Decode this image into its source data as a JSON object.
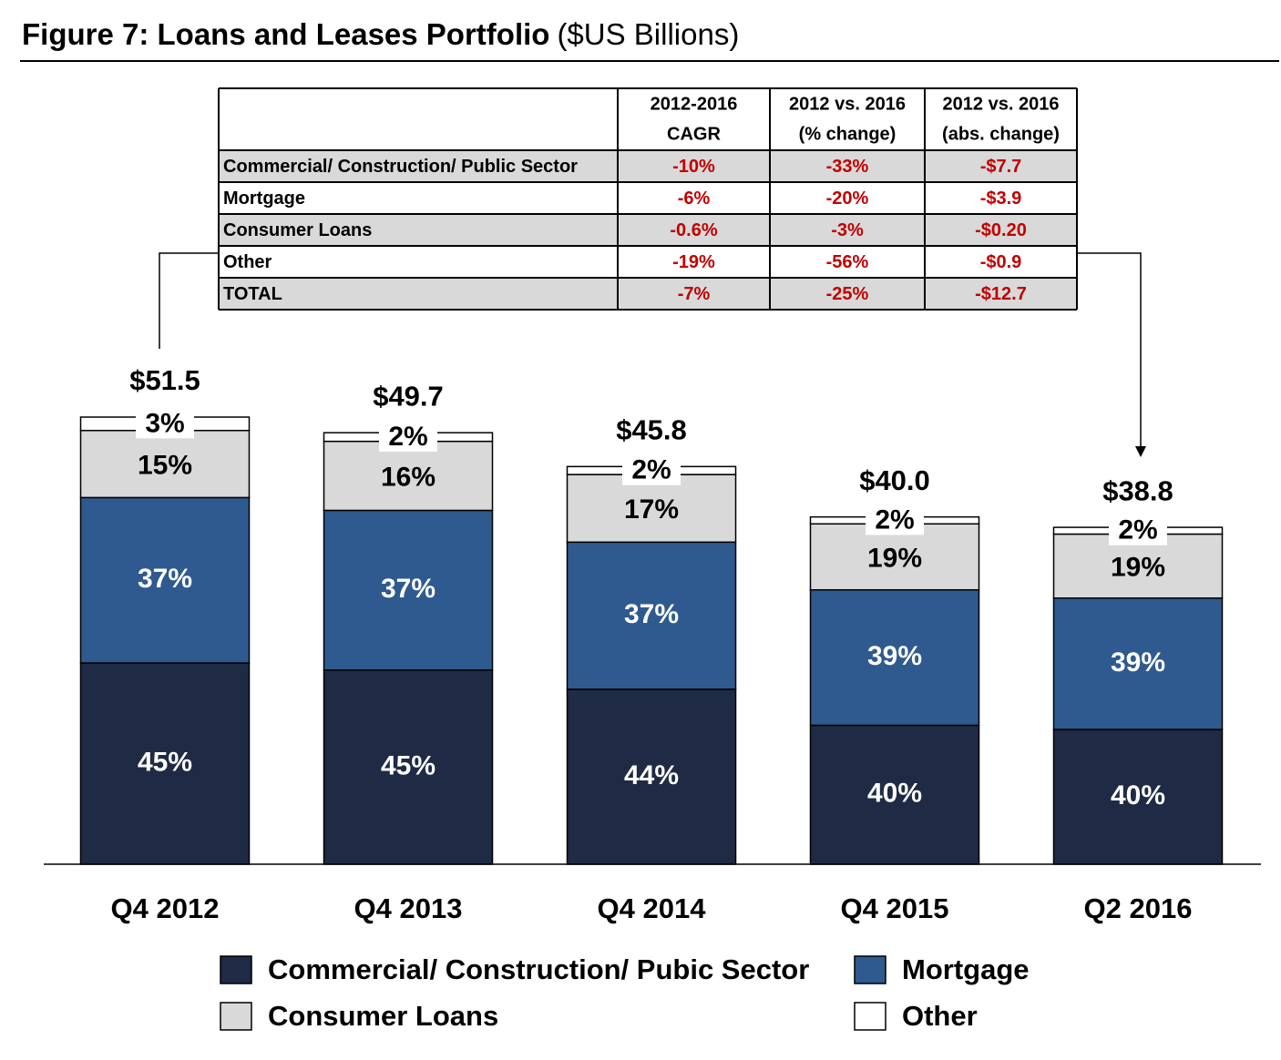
{
  "chart_data": {
    "type": "stacked-bar",
    "title": "Figure 7: Loans and Leases Portfolio",
    "subtitle": "($US Billions)",
    "categories": [
      "Q4 2012",
      "Q4 2013",
      "Q4 2014",
      "Q4 2015",
      "Q2 2016"
    ],
    "totals": {
      "values": [
        51.5,
        49.7,
        45.8,
        40.0,
        38.8
      ],
      "value_labels": [
        "$51.5",
        "$49.7",
        "$45.8",
        "$40.0",
        "$38.8"
      ]
    },
    "series": [
      {
        "name": "Commercial/ Construction/ Pubic Sector",
        "color": "#1f2a44",
        "values": [
          45,
          45,
          44,
          40,
          40
        ],
        "value_labels": [
          "45%",
          "45%",
          "44%",
          "40%",
          "40%"
        ]
      },
      {
        "name": "Mortgage",
        "color": "#2f5a8f",
        "values": [
          37,
          37,
          37,
          39,
          39
        ],
        "value_labels": [
          "37%",
          "37%",
          "37%",
          "39%",
          "39%"
        ]
      },
      {
        "name": "Consumer Loans",
        "color": "#d9d9d9",
        "values": [
          15,
          16,
          17,
          19,
          19
        ],
        "value_labels": [
          "15%",
          "16%",
          "17%",
          "19%",
          "19%"
        ]
      },
      {
        "name": "Other",
        "color": "#ffffff",
        "values": [
          3,
          2,
          2,
          2,
          2
        ],
        "value_labels": [
          "3%",
          "2%",
          "2%",
          "2%",
          "2%"
        ]
      }
    ],
    "table": {
      "columns": [
        [
          "2012-2016",
          "CAGR"
        ],
        [
          "2012 vs. 2016",
          "(% change)"
        ],
        [
          "2012 vs. 2016",
          "(abs. change)"
        ]
      ],
      "rows": [
        {
          "label": "Commercial/ Construction/ Public Sector",
          "cells": [
            "-10%",
            "-33%",
            "-$7.7"
          ]
        },
        {
          "label": "Mortgage",
          "cells": [
            "-6%",
            "-20%",
            "-$3.9"
          ]
        },
        {
          "label": "Consumer Loans",
          "cells": [
            "-0.6%",
            "-3%",
            "-$0.20"
          ]
        },
        {
          "label": "Other",
          "cells": [
            "-19%",
            "-56%",
            "-$0.9"
          ]
        },
        {
          "label": "TOTAL",
          "cells": [
            "-7%",
            "-25%",
            "-$12.7"
          ]
        }
      ]
    }
  }
}
